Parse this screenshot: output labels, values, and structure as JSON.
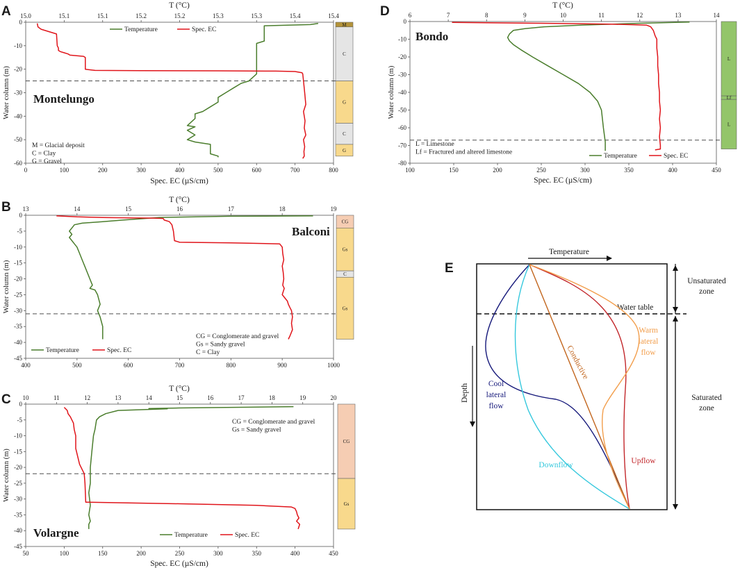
{
  "colors": {
    "temperature": "#4a7d2c",
    "spec_ec": "#e0141a",
    "water_table": "#333333",
    "litho_gravel": "#f8d98c",
    "litho_clay": "#e5e5e5",
    "litho_glacial": "#b39339",
    "litho_conglomerate": "#f6cdb3",
    "litho_limestone": "#93c56a",
    "cool_lateral": "#15187a",
    "downflow": "#35c8dd",
    "conductive": "#c2661e",
    "upflow": "#c2262a",
    "warm_lateral": "#f29e4c"
  },
  "legend": {
    "temperature": "Temperature",
    "spec_ec": "Spec. EC"
  },
  "chart_data": [
    {
      "panel": "A",
      "site": "Montelungo",
      "type": "line",
      "top_axis_title": "T (°C)",
      "top_ticks": [
        "15.0",
        "15.1",
        "15.1",
        "15.2",
        "15.2",
        "15.3",
        "15.3",
        "15.4",
        "15.4"
      ],
      "xlim_temperature": [
        15.0,
        15.4
      ],
      "bottom_axis_title": "Spec. EC (µS/cm)",
      "bottom_ticks": [
        "0",
        "100",
        "200",
        "300",
        "400",
        "500",
        "600",
        "700",
        "800"
      ],
      "xlim_ec": [
        0,
        800
      ],
      "ylabel": "Water column (m)",
      "y_ticks": [
        "0",
        "-10",
        "-20",
        "-30",
        "-40",
        "-50",
        "-60"
      ],
      "ylim": [
        -60,
        0
      ],
      "water_table": -25,
      "notes": [
        "M = Glacial deposit",
        "C = Clay",
        "G = Gravel"
      ],
      "lithology": [
        {
          "code": "M",
          "top": 0,
          "bottom": -2,
          "kind": "glacial"
        },
        {
          "code": "C",
          "top": -2,
          "bottom": -25,
          "kind": "clay"
        },
        {
          "code": "G",
          "top": -25,
          "bottom": -43,
          "kind": "gravel"
        },
        {
          "code": "C",
          "top": -43,
          "bottom": -52,
          "kind": "clay"
        },
        {
          "code": "G",
          "top": -52,
          "bottom": -57,
          "kind": "gravel"
        }
      ],
      "series": [
        {
          "name": "Temperature",
          "axis": "temperature",
          "x": [
            15.38,
            15.37,
            15.31,
            15.31,
            15.3,
            15.3,
            15.3,
            15.29,
            15.28,
            15.27,
            15.26,
            15.25,
            15.25,
            15.24,
            15.23,
            15.22,
            15.22,
            15.21,
            15.22,
            15.21,
            15.22,
            15.21,
            15.22,
            15.24,
            15.24,
            15.25,
            15.25
          ],
          "y": [
            -0.5,
            -1,
            -1.5,
            -8,
            -9,
            -20,
            -22,
            -25,
            -26,
            -28,
            -30,
            -32,
            -34,
            -36,
            -38,
            -39,
            -41,
            -44,
            -44.5,
            -46,
            -48,
            -50,
            -51,
            -52,
            -56,
            -57,
            -57.5
          ]
        },
        {
          "name": "Spec. EC",
          "axis": "ec",
          "x": [
            30,
            32,
            40,
            60,
            80,
            82,
            85,
            85,
            90,
            100,
            110,
            115,
            150,
            155,
            155,
            180,
            300,
            500,
            650,
            700,
            718,
            720,
            722,
            725,
            728,
            722,
            726,
            724,
            728,
            722,
            725,
            723,
            724,
            720
          ],
          "y": [
            -0.5,
            -2,
            -3,
            -4,
            -5,
            -10,
            -11,
            -12,
            -12.5,
            -13,
            -13.5,
            -14,
            -14.5,
            -15,
            -20,
            -20.5,
            -20.6,
            -20.7,
            -20.8,
            -21,
            -21.5,
            -22,
            -25,
            -30,
            -35,
            -38,
            -42,
            -45,
            -48,
            -50,
            -53,
            -55,
            -57,
            -58
          ]
        }
      ]
    },
    {
      "panel": "B",
      "site": "Balconi",
      "type": "line",
      "top_axis_title": "T (°C)",
      "top_ticks": [
        "13",
        "14",
        "15",
        "16",
        "17",
        "18",
        "19"
      ],
      "xlim_temperature": [
        13,
        19
      ],
      "bottom_axis_title": "",
      "bottom_ticks": [
        "400",
        "500",
        "600",
        "700",
        "800",
        "900",
        "1000"
      ],
      "xlim_ec": [
        400,
        1000
      ],
      "ylabel": "Water column (m)",
      "y_ticks": [
        "0",
        "-5",
        "-10",
        "-15",
        "-20",
        "-25",
        "-30",
        "-35",
        "-40",
        "-45"
      ],
      "ylim": [
        -45,
        0
      ],
      "water_table": -31,
      "notes": [
        "CG = Conglomerate and gravel",
        "Gs = Sandy gravel",
        "C = Clay"
      ],
      "lithology": [
        {
          "code": "CG",
          "top": 0,
          "bottom": -4,
          "kind": "conglomerate"
        },
        {
          "code": "Gs",
          "top": -4,
          "bottom": -17.5,
          "kind": "gravel"
        },
        {
          "code": "C",
          "top": -17.5,
          "bottom": -19.5,
          "kind": "clay"
        },
        {
          "code": "Gs",
          "top": -19.5,
          "bottom": -39,
          "kind": "gravel"
        }
      ],
      "series": [
        {
          "name": "Temperature",
          "axis": "temperature",
          "x": [
            18.6,
            17.0,
            15.6,
            14.9,
            14.5,
            14.1,
            13.95,
            13.9,
            13.85,
            13.9,
            13.85,
            13.9,
            13.95,
            14.0,
            14.05,
            14.1,
            14.15,
            14.2,
            14.25,
            14.3,
            14.25,
            14.35,
            14.4,
            14.45,
            14.4,
            14.45,
            14.5,
            14.5
          ],
          "y": [
            -0.2,
            -0.3,
            -0.7,
            -1.5,
            -2,
            -2.5,
            -3,
            -4,
            -5,
            -6,
            -7,
            -8,
            -9,
            -10,
            -12,
            -14,
            -16,
            -18,
            -20,
            -22,
            -23,
            -23.5,
            -25,
            -28,
            -30,
            -32,
            -35,
            -39
          ]
        },
        {
          "name": "Spec. EC",
          "axis": "ec",
          "x": [
            460,
            500,
            550,
            600,
            650,
            668,
            670,
            680,
            685,
            688,
            690,
            700,
            800,
            895,
            900,
            901,
            903,
            900,
            902,
            903,
            901,
            904,
            900,
            910,
            912,
            915,
            918,
            920,
            918,
            920,
            915,
            912
          ],
          "y": [
            -0.2,
            -0.5,
            -0.7,
            -0.8,
            -0.9,
            -1,
            -1.5,
            -2,
            -3,
            -5,
            -8,
            -8.5,
            -8.7,
            -9,
            -10,
            -12,
            -14,
            -16,
            -18,
            -20,
            -22,
            -23,
            -25,
            -27,
            -28,
            -29,
            -30,
            -32,
            -34,
            -36,
            -38,
            -39
          ]
        }
      ]
    },
    {
      "panel": "C",
      "site": "Volargne",
      "type": "line",
      "top_axis_title": "T (°C)",
      "top_ticks": [
        "10",
        "11",
        "12",
        "13",
        "14",
        "15",
        "16",
        "17",
        "18",
        "19",
        "20"
      ],
      "xlim_temperature": [
        10,
        20
      ],
      "bottom_axis_title": "Spec. EC (µS/cm)",
      "bottom_ticks": [
        "50",
        "100",
        "150",
        "200",
        "250",
        "300",
        "350",
        "400",
        "450"
      ],
      "xlim_ec": [
        50,
        450
      ],
      "ylabel": "Water column (m)",
      "y_ticks": [
        "0",
        "-5",
        "-10",
        "-15",
        "-20",
        "-25",
        "-30",
        "-35",
        "-40",
        "-45"
      ],
      "ylim": [
        -45,
        0
      ],
      "water_table": -22,
      "notes": [
        "CG = Conglomerate and gravel",
        "Gs = Sandy gravel"
      ],
      "lithology": [
        {
          "code": "CG",
          "top": 0,
          "bottom": -23.5,
          "kind": "conglomerate"
        },
        {
          "code": "Gs",
          "top": -23.5,
          "bottom": -39.5,
          "kind": "gravel"
        }
      ],
      "series": [
        {
          "name": "Temperature",
          "axis": "temperature",
          "x": [
            18.7,
            15.0,
            14.0,
            14.6,
            13.0,
            12.6,
            12.4,
            12.3,
            12.25,
            12.2,
            12.15,
            12.1,
            12.1,
            12.05,
            12.1,
            12.05,
            12.1,
            12.05,
            12.05
          ],
          "y": [
            -0.8,
            -1.2,
            -1.4,
            -1.5,
            -2,
            -3,
            -4,
            -5,
            -8,
            -10,
            -15,
            -20,
            -25,
            -28,
            -32,
            -35,
            -37,
            -38,
            -39.5
          ]
        },
        {
          "name": "Spec. EC",
          "axis": "ec",
          "x": [
            100,
            104,
            105,
            108,
            112,
            113,
            115,
            115,
            118,
            120,
            122,
            124,
            126,
            127,
            128,
            250,
            350,
            395,
            400,
            402,
            403,
            405,
            402,
            406,
            404
          ],
          "y": [
            -1,
            -2,
            -3,
            -4,
            -6,
            -8,
            -10,
            -14,
            -17,
            -19,
            -20,
            -21,
            -22,
            -25,
            -31,
            -31.5,
            -32,
            -32.5,
            -33,
            -34,
            -35,
            -36,
            -37,
            -38,
            -39.5
          ]
        }
      ]
    },
    {
      "panel": "D",
      "site": "Bondo",
      "type": "line",
      "top_axis_title": "T (°C)",
      "top_ticks": [
        "6",
        "7",
        "8",
        "9",
        "10",
        "11",
        "12",
        "13",
        "14"
      ],
      "xlim_temperature": [
        6,
        14
      ],
      "bottom_axis_title": "Spec. EC (µS/cm)",
      "bottom_ticks": [
        "100",
        "150",
        "200",
        "250",
        "300",
        "350",
        "400",
        "450"
      ],
      "xlim_ec": [
        100,
        450
      ],
      "ylabel": "Water column (m)",
      "y_ticks": [
        "0",
        "-10",
        "-20",
        "-30",
        "-40",
        "-50",
        "-60",
        "-70",
        "-80"
      ],
      "ylim": [
        -80,
        0
      ],
      "water_table": -67,
      "notes": [
        "L = Limestone",
        "Lf = Fractured and altered limestone"
      ],
      "lithology": [
        {
          "code": "L",
          "top": 0,
          "bottom": -42,
          "kind": "limestone"
        },
        {
          "code": "Lf",
          "top": -42,
          "bottom": -44,
          "kind": "limestone"
        },
        {
          "code": "L",
          "top": -44,
          "bottom": -72,
          "kind": "limestone"
        }
      ],
      "series": [
        {
          "name": "Temperature",
          "axis": "temperature",
          "x": [
            13.3,
            12.0,
            10.5,
            9.5,
            9.0,
            8.7,
            8.6,
            8.55,
            8.6,
            8.7,
            8.9,
            9.2,
            9.6,
            10.0,
            10.4,
            10.7,
            10.9,
            11.0,
            11.05,
            11.1,
            11.1
          ],
          "y": [
            -0.3,
            -1,
            -2,
            -3,
            -4,
            -5,
            -7,
            -9,
            -11,
            -13,
            -16,
            -20,
            -25,
            -30,
            -35,
            -40,
            -45,
            -50,
            -60,
            -68,
            -73
          ]
        },
        {
          "name": "Spec. EC",
          "axis": "ec",
          "x": [
            148,
            250,
            330,
            370,
            375,
            378,
            380,
            382,
            382,
            383,
            383,
            384,
            384,
            385,
            385,
            386,
            385,
            386,
            385,
            386,
            386,
            380
          ],
          "y": [
            -0.5,
            -1,
            -1.5,
            -2,
            -3,
            -5,
            -8,
            -10,
            -15,
            -20,
            -25,
            -30,
            -35,
            -40,
            -45,
            -50,
            -55,
            -60,
            -65,
            -70,
            -72,
            -72.5
          ]
        }
      ]
    },
    {
      "panel": "E",
      "type": "schematic",
      "top_label": "Temperature",
      "depth_label": "Depth",
      "water_table_label": "Water table",
      "zones": [
        "Unsaturated zone",
        "Saturated zone"
      ],
      "curves": [
        "Cool lateral flow",
        "Downflow",
        "Conductive",
        "Upflow",
        "Warm lateral flow"
      ]
    }
  ]
}
